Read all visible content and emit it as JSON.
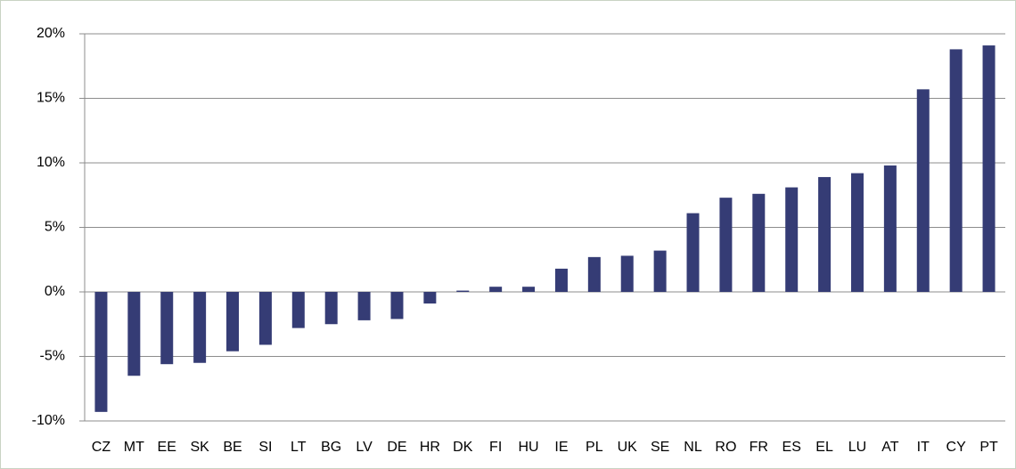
{
  "chart_data": {
    "type": "bar",
    "categories": [
      "CZ",
      "MT",
      "EE",
      "SK",
      "BE",
      "SI",
      "LT",
      "BG",
      "LV",
      "DE",
      "HR",
      "DK",
      "FI",
      "HU",
      "IE",
      "PL",
      "UK",
      "SE",
      "NL",
      "RO",
      "FR",
      "ES",
      "EL",
      "LU",
      "AT",
      "IT",
      "CY",
      "PT"
    ],
    "values": [
      -9.3,
      -6.5,
      -5.6,
      -5.5,
      -4.6,
      -4.1,
      -2.8,
      -2.5,
      -2.2,
      -2.1,
      -0.9,
      0.1,
      0.4,
      0.4,
      1.8,
      2.7,
      2.8,
      3.2,
      6.1,
      7.3,
      7.6,
      8.1,
      8.9,
      9.2,
      9.8,
      15.7,
      18.8,
      19.1
    ],
    "color": "#353c75",
    "ylim": [
      -10,
      20
    ],
    "yticks": [
      {
        "value": -10,
        "label": "-10%"
      },
      {
        "value": -5,
        "label": "-5%"
      },
      {
        "value": 0,
        "label": "0%"
      },
      {
        "value": 5,
        "label": "5%"
      },
      {
        "value": 10,
        "label": "10%"
      },
      {
        "value": 15,
        "label": "15%"
      },
      {
        "value": 20,
        "label": "20%"
      }
    ],
    "grid": true
  }
}
